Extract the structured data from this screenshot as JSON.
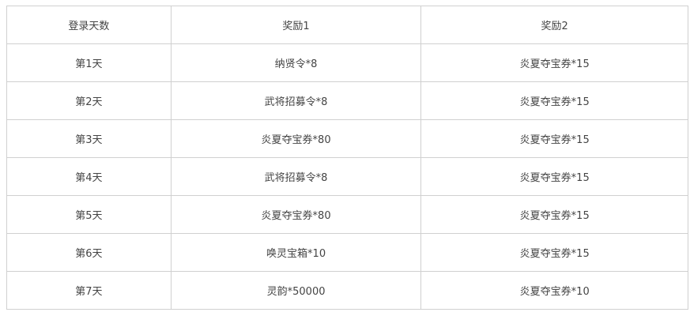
{
  "table": {
    "headers": [
      "登录天数",
      "奖励1",
      "奖励2"
    ],
    "rows": [
      [
        "第1天",
        "纳贤令*8",
        "炎夏夺宝券*15"
      ],
      [
        "第2天",
        "武将招募令*8",
        "炎夏夺宝券*15"
      ],
      [
        "第3天",
        "炎夏夺宝券*80",
        "炎夏夺宝券*15"
      ],
      [
        "第4天",
        "武将招募令*8",
        "炎夏夺宝券*15"
      ],
      [
        "第5天",
        "炎夏夺宝券*80",
        "炎夏夺宝券*15"
      ],
      [
        "第6天",
        "唤灵宝箱*10",
        "炎夏夺宝券*15"
      ],
      [
        "第7天",
        "灵韵*50000",
        "炎夏夺宝券*10"
      ]
    ]
  }
}
